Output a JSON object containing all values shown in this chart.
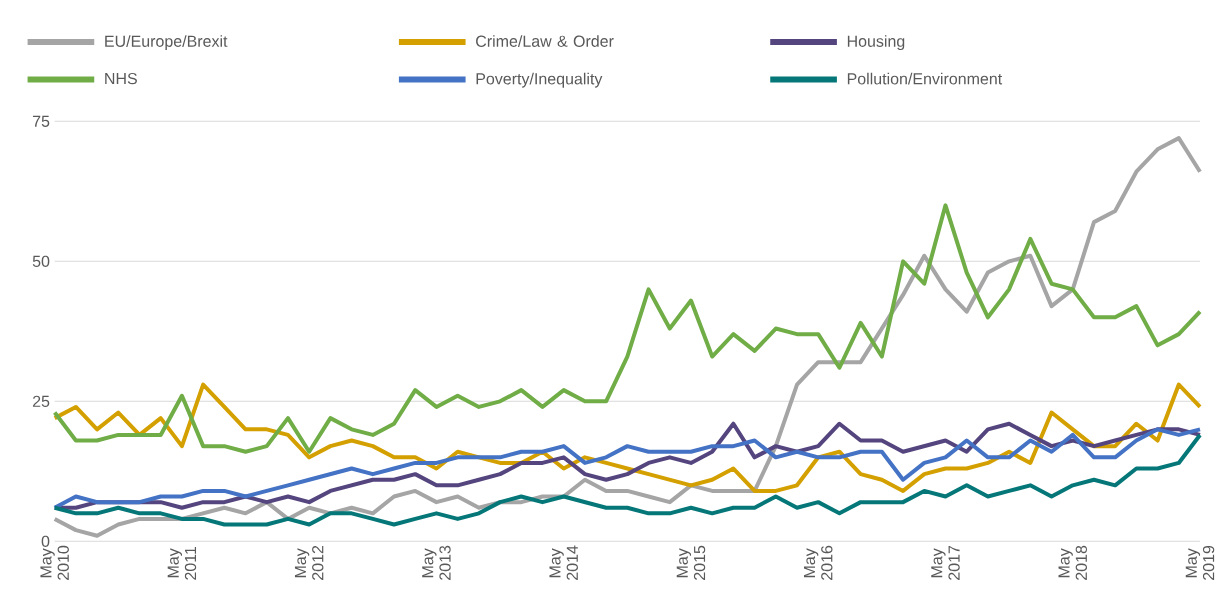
{
  "chart_data": {
    "type": "line",
    "x": [
      "2010-05",
      "2010-07",
      "2010-09",
      "2010-11",
      "2011-01",
      "2011-03",
      "2011-05",
      "2011-07",
      "2011-09",
      "2011-11",
      "2012-01",
      "2012-03",
      "2012-05",
      "2012-07",
      "2012-09",
      "2012-11",
      "2013-01",
      "2013-03",
      "2013-05",
      "2013-07",
      "2013-09",
      "2013-11",
      "2014-01",
      "2014-03",
      "2014-05",
      "2014-07",
      "2014-09",
      "2014-11",
      "2015-01",
      "2015-03",
      "2015-05",
      "2015-07",
      "2015-09",
      "2015-11",
      "2016-01",
      "2016-03",
      "2016-05",
      "2016-07",
      "2016-09",
      "2016-11",
      "2017-01",
      "2017-03",
      "2017-05",
      "2017-07",
      "2017-09",
      "2017-11",
      "2018-01",
      "2018-03",
      "2018-05",
      "2018-07",
      "2018-09",
      "2018-11",
      "2019-01",
      "2019-03",
      "2019-05"
    ],
    "series": [
      {
        "name": "EU/Europe/Brexit",
        "color": "#a5a5a5",
        "values": [
          4,
          2,
          1,
          3,
          4,
          4,
          4,
          5,
          6,
          5,
          7,
          4,
          6,
          5,
          6,
          5,
          8,
          9,
          7,
          8,
          6,
          7,
          7,
          8,
          8,
          11,
          9,
          9,
          8,
          7,
          10,
          9,
          9,
          9,
          17,
          28,
          32,
          32,
          32,
          38,
          44,
          51,
          45,
          41,
          48,
          50,
          51,
          42,
          45,
          57,
          59,
          66,
          70,
          72,
          66
        ]
      },
      {
        "name": "Crime/Law & Order",
        "color": "#d4a000",
        "values": [
          22,
          24,
          20,
          23,
          19,
          22,
          17,
          28,
          24,
          20,
          20,
          19,
          15,
          17,
          18,
          17,
          15,
          15,
          13,
          16,
          15,
          14,
          14,
          16,
          13,
          15,
          14,
          13,
          12,
          11,
          10,
          11,
          13,
          9,
          9,
          10,
          15,
          16,
          12,
          11,
          9,
          12,
          13,
          13,
          14,
          16,
          14,
          23,
          20,
          17,
          17,
          21,
          18,
          28,
          24
        ]
      },
      {
        "name": "Housing",
        "color": "#54457f",
        "values": [
          6,
          6,
          7,
          7,
          7,
          7,
          6,
          7,
          7,
          8,
          7,
          8,
          7,
          9,
          10,
          11,
          11,
          12,
          10,
          10,
          11,
          12,
          14,
          14,
          15,
          12,
          11,
          12,
          14,
          15,
          14,
          16,
          21,
          15,
          17,
          16,
          17,
          21,
          18,
          18,
          16,
          17,
          18,
          16,
          20,
          21,
          19,
          17,
          18,
          17,
          18,
          19,
          20,
          20,
          19
        ]
      },
      {
        "name": "NHS",
        "color": "#70ad47",
        "values": [
          23,
          18,
          18,
          19,
          19,
          19,
          26,
          17,
          17,
          16,
          17,
          22,
          16,
          22,
          20,
          19,
          21,
          27,
          24,
          26,
          24,
          25,
          27,
          24,
          27,
          25,
          25,
          33,
          45,
          38,
          43,
          33,
          37,
          34,
          38,
          37,
          37,
          31,
          39,
          33,
          50,
          46,
          60,
          48,
          40,
          45,
          54,
          46,
          45,
          40,
          40,
          42,
          35,
          37,
          41
        ]
      },
      {
        "name": "Poverty/Inequality",
        "color": "#4472c4",
        "values": [
          6,
          8,
          7,
          7,
          7,
          8,
          8,
          9,
          9,
          8,
          9,
          10,
          11,
          12,
          13,
          12,
          13,
          14,
          14,
          15,
          15,
          15,
          16,
          16,
          17,
          14,
          15,
          17,
          16,
          16,
          16,
          17,
          17,
          18,
          15,
          16,
          15,
          15,
          16,
          16,
          11,
          14,
          15,
          18,
          15,
          15,
          18,
          16,
          19,
          15,
          15,
          18,
          20,
          19,
          20
        ]
      },
      {
        "name": "Pollution/Environment",
        "color": "#057778",
        "values": [
          6,
          5,
          5,
          6,
          5,
          5,
          4,
          4,
          3,
          3,
          3,
          4,
          3,
          5,
          5,
          4,
          3,
          4,
          5,
          4,
          5,
          7,
          8,
          7,
          8,
          7,
          6,
          6,
          5,
          5,
          6,
          5,
          6,
          6,
          8,
          6,
          7,
          5,
          7,
          7,
          7,
          9,
          8,
          10,
          8,
          9,
          10,
          8,
          10,
          11,
          10,
          13,
          13,
          14,
          19
        ]
      }
    ],
    "xlim": [
      "2010-05",
      "2019-05"
    ],
    "xticks": [
      {
        "value": "2010-05",
        "label": "May 2010"
      },
      {
        "value": "2011-05",
        "label": "May 2011"
      },
      {
        "value": "2012-05",
        "label": "May 2012"
      },
      {
        "value": "2013-05",
        "label": "May 2013"
      },
      {
        "value": "2014-05",
        "label": "May 2014"
      },
      {
        "value": "2015-05",
        "label": "May 2015"
      },
      {
        "value": "2016-05",
        "label": "May 2016"
      },
      {
        "value": "2017-05",
        "label": "May 2017"
      },
      {
        "value": "2018-05",
        "label": "May 2018"
      },
      {
        "value": "2019-05",
        "label": "May 2019"
      }
    ],
    "ylim": [
      0,
      75
    ],
    "yticks": [
      0,
      25,
      50,
      75
    ],
    "grid": "y",
    "legend": "top",
    "marker": "none",
    "line_style": "solid"
  }
}
